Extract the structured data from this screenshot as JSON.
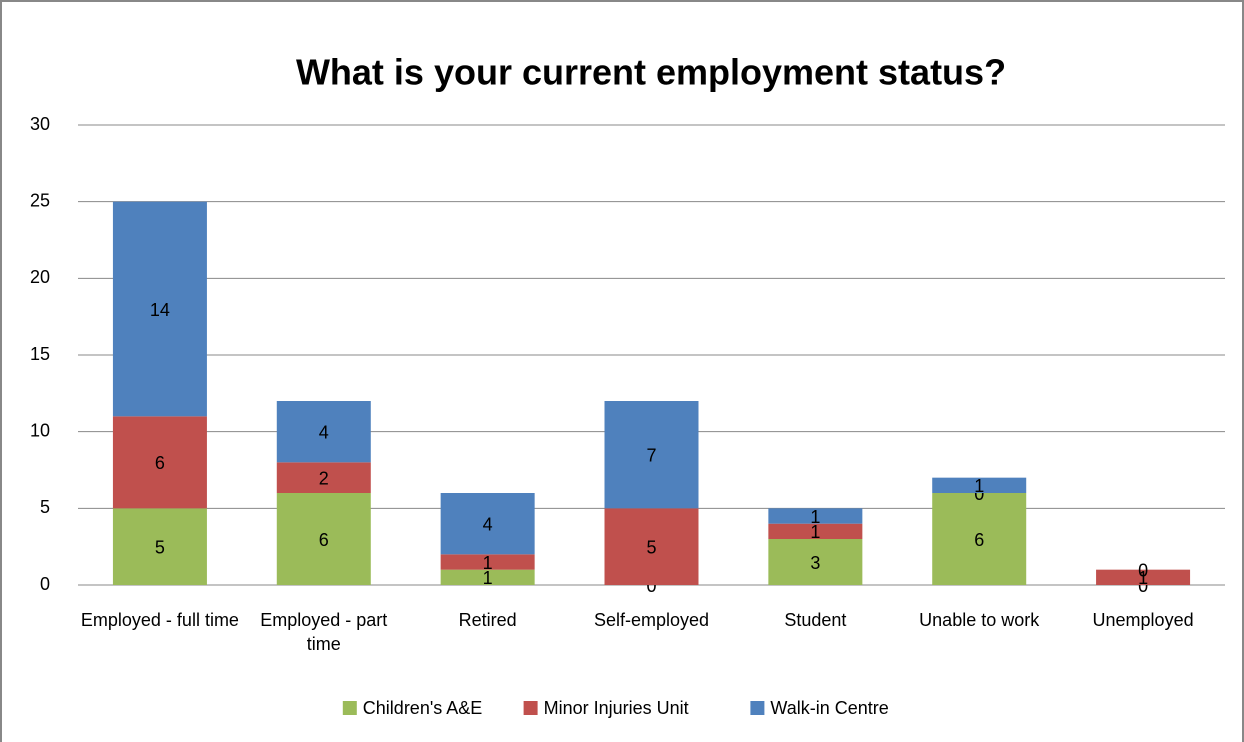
{
  "chart_data": {
    "type": "bar",
    "stacked": true,
    "title": "What is your current employment status?",
    "categories": [
      "Employed - full time",
      "Employed - part time",
      "Retired",
      "Self-employed",
      "Student",
      "Unable to work",
      "Unemployed"
    ],
    "series": [
      {
        "name": "Children's A&E",
        "color": "#9bbb59",
        "values": [
          5,
          6,
          1,
          0,
          3,
          6,
          0
        ]
      },
      {
        "name": "Minor Injuries Unit",
        "color": "#c0504d",
        "values": [
          6,
          2,
          1,
          5,
          1,
          0,
          1
        ]
      },
      {
        "name": "Walk-in Centre",
        "color": "#4f81bd",
        "values": [
          14,
          4,
          4,
          7,
          1,
          1,
          0
        ]
      }
    ],
    "ylim": [
      0,
      30
    ],
    "yticks": [
      0,
      5,
      10,
      15,
      20,
      25,
      30
    ],
    "grid": true,
    "legend": "bottom"
  }
}
